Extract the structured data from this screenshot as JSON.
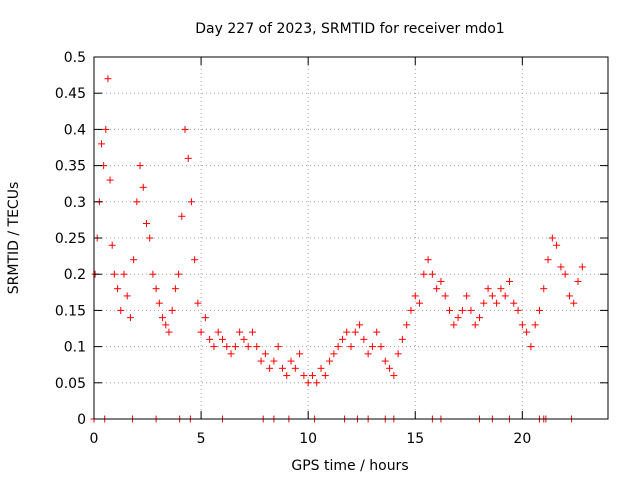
{
  "chart_data": {
    "type": "scatter",
    "title": "Day 227 of 2023, SRMTID for receiver mdo1",
    "xlabel": "GPS time / hours",
    "ylabel": "SRMTID / TECUs",
    "xlim": [
      0,
      24
    ],
    "ylim": [
      0,
      0.5
    ],
    "xticks": [
      0,
      5,
      10,
      15,
      20
    ],
    "xtick_labels": [
      "0",
      "5",
      "10",
      "15",
      "20"
    ],
    "yticks": [
      0,
      0.05,
      0.1,
      0.15,
      0.2,
      0.25,
      0.3,
      0.35,
      0.4,
      0.45,
      0.5
    ],
    "ytick_labels": [
      "0",
      "0.05",
      "0.1",
      "0.15",
      "0.2",
      "0.25",
      "0.3",
      "0.35",
      "0.4",
      "0.45",
      "0.5"
    ],
    "grid": true,
    "marker": "+",
    "colors": {
      "marker": "#ff0000",
      "grid": "#a0a0a0",
      "axis": "#000000"
    },
    "series": [
      {
        "name": "SRMTID",
        "x": [
          0.05,
          0.15,
          0.25,
          0.35,
          0.45,
          0.55,
          0.65,
          0.75,
          0.85,
          0.95,
          1.1,
          1.25,
          1.4,
          1.55,
          1.7,
          1.85,
          2.0,
          2.15,
          2.3,
          2.45,
          2.6,
          2.75,
          2.9,
          3.05,
          3.2,
          3.35,
          3.5,
          3.65,
          3.8,
          3.95,
          4.1,
          4.25,
          4.4,
          4.55,
          4.7,
          4.85,
          5.0,
          5.2,
          5.4,
          5.6,
          5.8,
          6.0,
          6.2,
          6.4,
          6.6,
          6.8,
          7.0,
          7.2,
          7.4,
          7.6,
          7.8,
          8.0,
          8.2,
          8.4,
          8.6,
          8.8,
          9.0,
          9.2,
          9.4,
          9.6,
          9.8,
          10.0,
          10.2,
          10.4,
          10.6,
          10.8,
          11.0,
          11.2,
          11.4,
          11.6,
          11.8,
          12.0,
          12.2,
          12.4,
          12.6,
          12.8,
          13.0,
          13.2,
          13.4,
          13.6,
          13.8,
          14.0,
          14.2,
          14.4,
          14.6,
          14.8,
          15.0,
          15.2,
          15.4,
          15.6,
          15.8,
          16.0,
          16.2,
          16.4,
          16.6,
          16.8,
          17.0,
          17.2,
          17.4,
          17.6,
          17.8,
          18.0,
          18.2,
          18.4,
          18.6,
          18.8,
          19.0,
          19.2,
          19.4,
          19.6,
          19.8,
          20.0,
          20.2,
          20.4,
          20.6,
          20.8,
          21.0,
          21.2,
          21.4,
          21.6,
          21.8,
          22.0,
          22.2,
          22.4,
          22.6,
          22.8
        ],
        "y": [
          0.2,
          0.25,
          0.3,
          0.38,
          0.35,
          0.4,
          0.47,
          0.33,
          0.24,
          0.2,
          0.18,
          0.15,
          0.2,
          0.17,
          0.14,
          0.22,
          0.3,
          0.35,
          0.32,
          0.27,
          0.25,
          0.2,
          0.18,
          0.16,
          0.14,
          0.13,
          0.12,
          0.15,
          0.18,
          0.2,
          0.28,
          0.4,
          0.36,
          0.3,
          0.22,
          0.16,
          0.12,
          0.14,
          0.11,
          0.1,
          0.12,
          0.11,
          0.1,
          0.09,
          0.1,
          0.12,
          0.11,
          0.1,
          0.12,
          0.1,
          0.08,
          0.09,
          0.07,
          0.08,
          0.1,
          0.07,
          0.06,
          0.08,
          0.07,
          0.09,
          0.06,
          0.05,
          0.06,
          0.05,
          0.07,
          0.06,
          0.08,
          0.09,
          0.1,
          0.11,
          0.12,
          0.1,
          0.12,
          0.13,
          0.11,
          0.09,
          0.1,
          0.12,
          0.1,
          0.08,
          0.07,
          0.06,
          0.09,
          0.11,
          0.13,
          0.15,
          0.17,
          0.16,
          0.2,
          0.22,
          0.2,
          0.18,
          0.19,
          0.17,
          0.15,
          0.13,
          0.14,
          0.15,
          0.17,
          0.15,
          0.13,
          0.14,
          0.16,
          0.18,
          0.17,
          0.16,
          0.18,
          0.17,
          0.19,
          0.16,
          0.15,
          0.13,
          0.12,
          0.1,
          0.13,
          0.15,
          0.18,
          0.22,
          0.25,
          0.24,
          0.21,
          0.2,
          0.17,
          0.16,
          0.19,
          0.21
        ]
      }
    ],
    "zero_markers_x": [
      0.0,
      0.5,
      1.8,
      2.9,
      4.0,
      4.5,
      6.0,
      7.9,
      8.4,
      9.1,
      10.3,
      11.7,
      12.3,
      12.8,
      13.6,
      14.0,
      15.8,
      16.2,
      18.0,
      18.6,
      19.4,
      20.8,
      21.0,
      21.1,
      22.3
    ]
  }
}
